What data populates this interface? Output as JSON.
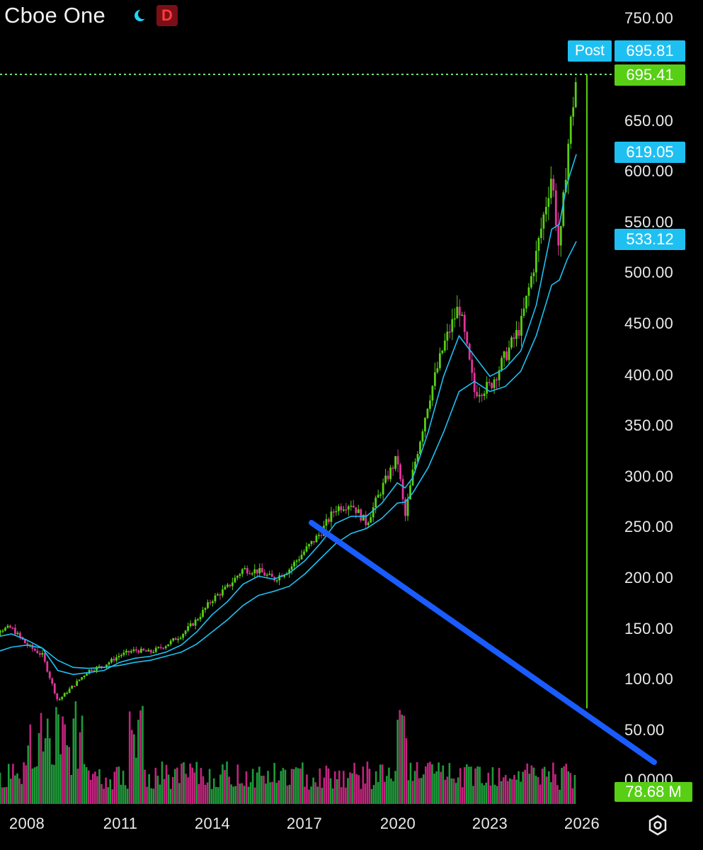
{
  "header": {
    "symbol_title": "Cboe One",
    "session_icon": "crescent-moon-icon",
    "interval_badge": "D"
  },
  "price_axis": {
    "ticks": [
      "750.00",
      "650.00",
      "600.00",
      "550.00",
      "500.00",
      "450.00",
      "400.00",
      "350.00",
      "300.00",
      "250.00",
      "200.00",
      "150.00",
      "100.00",
      "50.00",
      "0.0000"
    ]
  },
  "price_tags": {
    "post_label": "Post",
    "post_price": "695.81",
    "last_price": "695.41",
    "ma_fast": "619.05",
    "ma_slow": "533.12",
    "volume": "78.68 M"
  },
  "time_axis": {
    "years": [
      "2008",
      "2011",
      "2014",
      "2017",
      "2020",
      "2023",
      "2026"
    ]
  },
  "toolbar": {
    "settings_icon": "gear-icon"
  },
  "colors": {
    "up": "#57cf14",
    "down": "#e0359a",
    "ma": "#1ec0f2",
    "drawn_line": "#1a5cff",
    "last_price_line": "#6fe07a"
  },
  "chart_data": {
    "type": "line",
    "title": "Cboe One",
    "interval": "D",
    "x": [
      2006.5,
      2007.0,
      2007.5,
      2008.0,
      2008.5,
      2009.0,
      2009.5,
      2010.0,
      2010.5,
      2011.0,
      2011.5,
      2012.0,
      2012.5,
      2013.0,
      2013.5,
      2014.0,
      2014.5,
      2015.0,
      2015.5,
      2016.0,
      2016.5,
      2017.0,
      2017.5,
      2018.0,
      2018.5,
      2019.0,
      2019.5,
      2020.0,
      2020.25,
      2020.5,
      2021.0,
      2021.5,
      2022.0,
      2022.5,
      2023.0,
      2023.5,
      2024.0,
      2024.5,
      2025.0,
      2025.25,
      2025.5,
      2025.8
    ],
    "series": [
      {
        "name": "",
        "values": [
          141,
          150,
          152,
          135,
          125,
          80,
          95,
          110,
          115,
          125,
          130,
          128,
          135,
          145,
          160,
          180,
          192,
          210,
          208,
          200,
          210,
          228,
          245,
          270,
          275,
          255,
          290,
          320,
          260,
          305,
          375,
          430,
          470,
          385,
          390,
          420,
          450,
          520,
          600,
          520,
          620,
          695.41
        ]
      },
      {
        "name": "",
        "values": [
          138,
          143,
          146,
          140,
          132,
          110,
          106,
          108,
          110,
          118,
          122,
          124,
          128,
          135,
          148,
          165,
          178,
          195,
          203,
          200,
          206,
          218,
          235,
          255,
          262,
          262,
          275,
          295,
          290,
          300,
          345,
          400,
          440,
          420,
          400,
          408,
          425,
          470,
          545,
          550,
          590,
          619.05
        ]
      },
      {
        "name": "",
        "values": [
          122,
          128,
          133,
          135,
          132,
          120,
          113,
          112,
          113,
          115,
          118,
          120,
          124,
          128,
          136,
          148,
          160,
          174,
          184,
          188,
          193,
          205,
          220,
          235,
          245,
          250,
          260,
          275,
          276,
          285,
          310,
          345,
          385,
          395,
          385,
          390,
          405,
          440,
          490,
          495,
          515,
          533.12
        ]
      }
    ],
    "volume_last": 78.68,
    "volume_unit": "M",
    "ylim": [
      0,
      750
    ],
    "xlim": [
      2006.5,
      2026.7
    ],
    "y_ticks": [
      750,
      650,
      600,
      550,
      500,
      450,
      400,
      350,
      300,
      250,
      200,
      150,
      100,
      50,
      0
    ],
    "x_ticks": [
      2008,
      2011,
      2014,
      2017,
      2020,
      2023,
      2026
    ],
    "last_price": 695.41,
    "post_price": 695.81,
    "ma_values": [
      619.05,
      533.12
    ],
    "drawn_trendline": {
      "from": {
        "x": 2017.3,
        "y": 255
      },
      "to": {
        "x": 2028.0,
        "y": 18
      }
    },
    "grid": false,
    "legend": "none"
  }
}
